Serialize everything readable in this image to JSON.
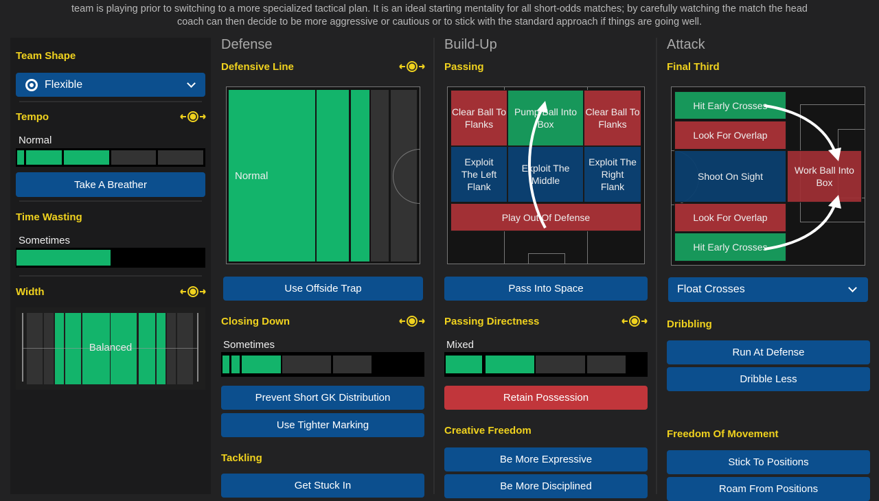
{
  "description": {
    "line1": "team is playing prior to switching to a more specialized tactical plan. It is an ideal starting mentality for all short-odds matches; by carefully watching the match the head",
    "line2": "coach can then decide to be more aggressive or cautious or to stick with the standard approach if things are going well."
  },
  "colors": {
    "accent": "#f0d21e",
    "button": "#0c4f8e",
    "danger": "#c1363b",
    "active": "#13b46b"
  },
  "left": {
    "team_shape": {
      "title": "Team Shape",
      "value": "Flexible"
    },
    "tempo": {
      "title": "Tempo",
      "value": "Normal",
      "level": 3,
      "of": 5,
      "button": "Take A Breather"
    },
    "time_wasting": {
      "title": "Time Wasting",
      "value": "Sometimes",
      "fraction": 0.5
    },
    "width": {
      "title": "Width",
      "value": "Balanced"
    }
  },
  "defense": {
    "title": "Defense",
    "defensive_line": {
      "title": "Defensive Line",
      "value": "Normal"
    },
    "offside_button": "Use Offside Trap",
    "closing_down": {
      "title": "Closing Down",
      "value": "Sometimes",
      "level": 3,
      "of": 5
    },
    "buttons": [
      "Prevent Short GK Distribution",
      "Use Tighter Marking"
    ],
    "tackling": {
      "title": "Tackling",
      "button": "Get Stuck In"
    }
  },
  "buildup": {
    "title": "Build-Up",
    "passing": {
      "title": "Passing",
      "zones": [
        "Clear Ball To Flanks",
        "Pump Ball Into Box",
        "Clear Ball To Flanks",
        "Exploit The Left Flank",
        "Exploit The Middle",
        "Exploit The Right Flank",
        "Play Out Of Defense"
      ]
    },
    "pass_into_space": "Pass Into Space",
    "directness": {
      "title": "Passing Directness",
      "value": "Mixed",
      "level": 2,
      "of": 4
    },
    "retain": "Retain Possession",
    "creative": {
      "title": "Creative Freedom",
      "buttons": [
        "Be More Expressive",
        "Be More Disciplined"
      ]
    }
  },
  "attack": {
    "title": "Attack",
    "final_third": {
      "title": "Final Third",
      "zones": [
        "Hit Early Crosses",
        "Look For Overlap",
        "Shoot On Sight",
        "Look For Overlap",
        "Hit Early Crosses",
        "Work Ball Into Box"
      ]
    },
    "crossing": "Float Crosses",
    "dribbling": {
      "title": "Dribbling",
      "buttons": [
        "Run At Defense",
        "Dribble Less"
      ]
    },
    "freedom": {
      "title": "Freedom Of Movement",
      "buttons": [
        "Stick To Positions",
        "Roam From Positions"
      ]
    }
  }
}
